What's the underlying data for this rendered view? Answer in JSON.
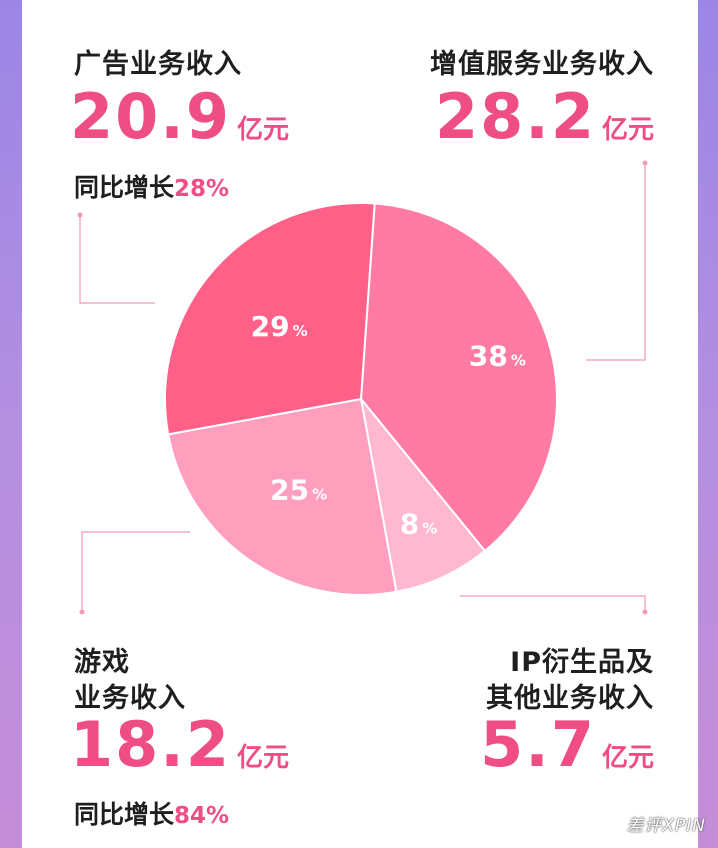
{
  "chart_data": {
    "type": "pie",
    "title": "",
    "slices": [
      {
        "label": "增值服务业务收入",
        "value": 38,
        "pct_label": "38",
        "amount": "28.2",
        "unit": "亿元",
        "yoy_label": "",
        "yoy": "",
        "color": "#ff7ba3"
      },
      {
        "label": "IP衍生品及其他业务收入",
        "value": 8,
        "pct_label": "8",
        "amount": "5.7",
        "unit": "亿元",
        "yoy_label": "",
        "yoy": "",
        "color": "#ffb8cf"
      },
      {
        "label": "游戏业务收入",
        "value": 25,
        "pct_label": "25",
        "amount": "18.2",
        "unit": "亿元",
        "yoy_label": "同比增长",
        "yoy": "84%",
        "color": "#ff9ebd"
      },
      {
        "label": "广告业务收入",
        "value": 29,
        "pct_label": "29",
        "amount": "20.9",
        "unit": "亿元",
        "yoy_label": "同比增长",
        "yoy": "28%",
        "color": "#ff6088"
      }
    ]
  },
  "labels": {
    "ad_title": "广告业务收入",
    "ad_amount": "20.9",
    "ad_unit": "亿元",
    "ad_yoy_label": "同比增长",
    "ad_yoy": "28%",
    "vas_title": "增值服务业务收入",
    "vas_amount": "28.2",
    "vas_unit": "亿元",
    "game_title_1": "游戏",
    "game_title_2": "业务收入",
    "game_amount": "18.2",
    "game_unit": "亿元",
    "game_yoy_label": "同比增长",
    "game_yoy": "84%",
    "ip_title_1": "IP衍生品及",
    "ip_title_2": "其他业务收入",
    "ip_amount": "5.7",
    "ip_unit": "亿元",
    "pct_sign": "%"
  },
  "watermark": "差评XPIN",
  "colors": {
    "accent": "#ef4e84",
    "leader_line": "#f29ab7",
    "background_top": "#9b86e6",
    "background_bottom": "#c58dd8"
  }
}
